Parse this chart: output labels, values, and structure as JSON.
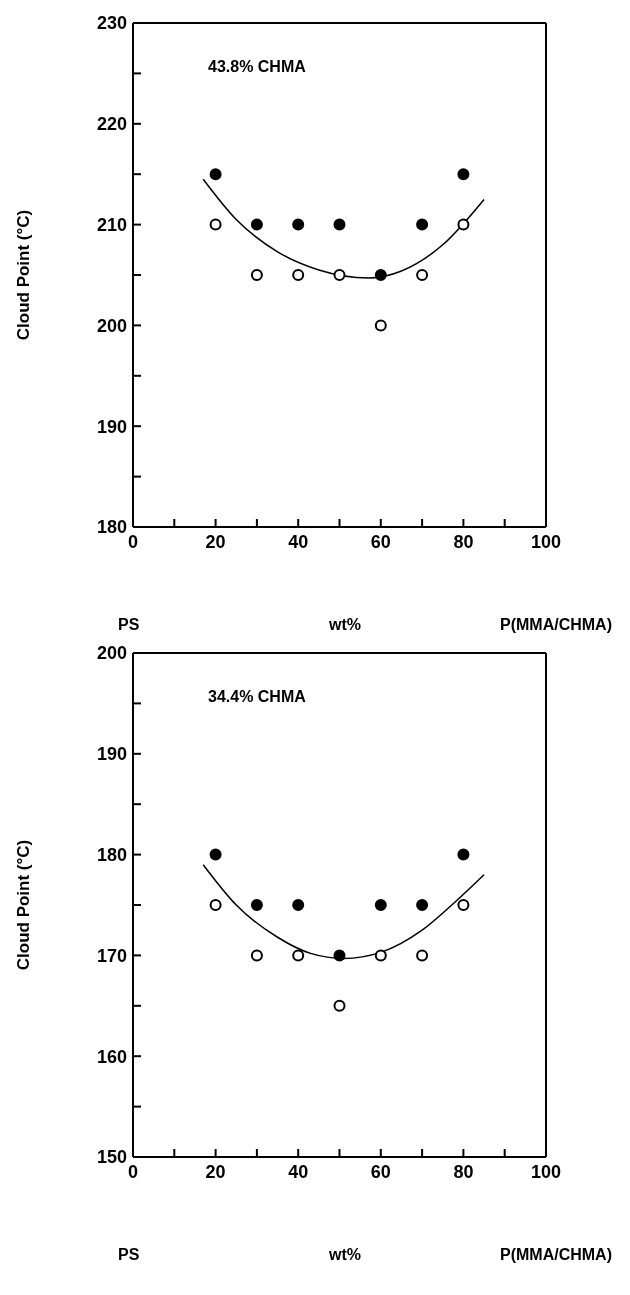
{
  "chart_data": [
    {
      "type": "scatter",
      "title": "43.8% CHMA",
      "xlabel": "wt%",
      "ylabel": "Cloud Point (°C)",
      "annotations": [
        "PS",
        "P(MMA/CHMA)"
      ],
      "xlim": [
        0,
        100
      ],
      "ylim": [
        180,
        230
      ],
      "xticks": [
        0,
        {
          "value": 10,
          "label": null
        },
        20,
        {
          "value": 30,
          "label": null
        },
        40,
        {
          "value": 50,
          "label": null
        },
        60,
        {
          "value": 70,
          "label": null
        },
        80,
        {
          "value": 90,
          "label": null
        },
        100
      ],
      "yticks": [
        180,
        {
          "value": 185,
          "label": null
        },
        190,
        {
          "value": 195,
          "label": null
        },
        200,
        {
          "value": 205,
          "label": null
        },
        210,
        {
          "value": 215,
          "label": null
        },
        220,
        {
          "value": 225,
          "label": null
        },
        230
      ],
      "grid": false,
      "legend": false,
      "marker": "circle",
      "series": [
        {
          "color": "#000000",
          "x": [
            20,
            30,
            40,
            50,
            60,
            70,
            80
          ],
          "values": [
            215,
            210,
            210,
            210,
            205,
            210,
            215
          ]
        },
        {
          "color": "#ffffff",
          "x": [
            20,
            30,
            40,
            50,
            60,
            70,
            80
          ],
          "values": [
            210,
            205,
            205,
            205,
            200,
            205,
            210
          ]
        },
        {
          "type": "line",
          "color": "#000000",
          "marker": "none",
          "line_style": "solid",
          "x": [
            17,
            25,
            35,
            45,
            57,
            65,
            75,
            85
          ],
          "values": [
            214.5,
            210.5,
            207.3,
            205.5,
            204.7,
            205.4,
            208,
            212.5
          ]
        }
      ]
    },
    {
      "type": "scatter",
      "title": "34.4% CHMA",
      "xlabel": "wt%",
      "ylabel": "Cloud Point (°C)",
      "annotations": [
        "PS",
        "P(MMA/CHMA)"
      ],
      "xlim": [
        0,
        100
      ],
      "ylim": [
        150,
        200
      ],
      "xticks": [
        0,
        {
          "value": 10,
          "label": null
        },
        20,
        {
          "value": 30,
          "label": null
        },
        40,
        {
          "value": 50,
          "label": null
        },
        60,
        {
          "value": 70,
          "label": null
        },
        80,
        {
          "value": 90,
          "label": null
        },
        100
      ],
      "yticks": [
        150,
        {
          "value": 155,
          "label": null
        },
        160,
        {
          "value": 165,
          "label": null
        },
        170,
        {
          "value": 175,
          "label": null
        },
        180,
        {
          "value": 185,
          "label": null
        },
        190,
        {
          "value": 195,
          "label": null
        },
        200
      ],
      "grid": false,
      "legend": false,
      "marker": "circle",
      "series": [
        {
          "color": "#000000",
          "x": [
            20,
            30,
            40,
            50,
            60,
            70,
            80
          ],
          "values": [
            180,
            175,
            175,
            170,
            175,
            175,
            180
          ]
        },
        {
          "color": "#ffffff",
          "x": [
            20,
            30,
            40,
            50,
            60,
            70,
            80
          ],
          "values": [
            175,
            170,
            170,
            165,
            170,
            170,
            175
          ]
        },
        {
          "type": "line",
          "color": "#000000",
          "marker": "none",
          "line_style": "solid",
          "x": [
            17,
            25,
            35,
            43,
            51,
            60,
            70,
            78,
            85
          ],
          "values": [
            179,
            175,
            171.8,
            170.2,
            169.7,
            170.3,
            172.5,
            175.3,
            178
          ]
        }
      ]
    }
  ]
}
